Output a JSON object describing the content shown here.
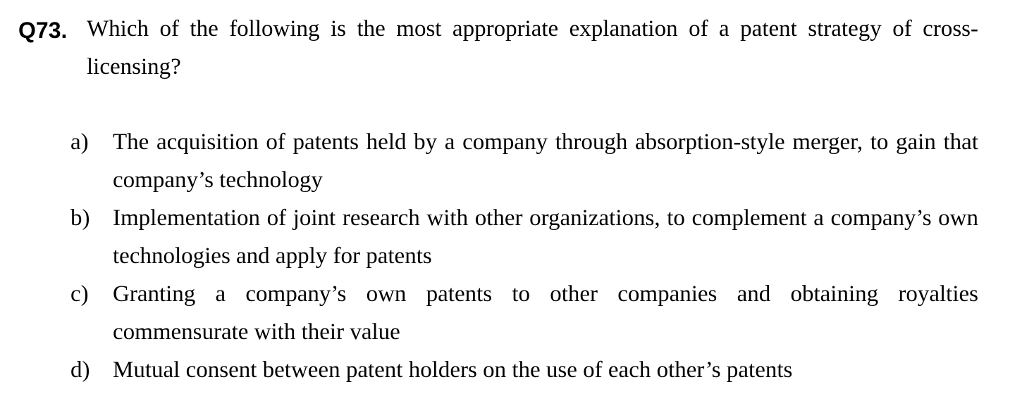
{
  "question": {
    "number": "Q73.",
    "text": "Which of the following is the most appropriate explanation of a patent strategy of cross-licensing?"
  },
  "options": [
    {
      "letter": "a)",
      "text": "The acquisition of patents held by a company through absorption-style merger, to gain that company’s technology"
    },
    {
      "letter": "b)",
      "text": "Implementation of joint research with other organizations, to complement a company’s own technologies and apply for patents"
    },
    {
      "letter": "c)",
      "text": "Granting a company’s own patents to other companies and obtaining royalties commensurate with their value"
    },
    {
      "letter": "d)",
      "text": "Mutual consent between patent holders on the use of each other’s patents"
    }
  ]
}
